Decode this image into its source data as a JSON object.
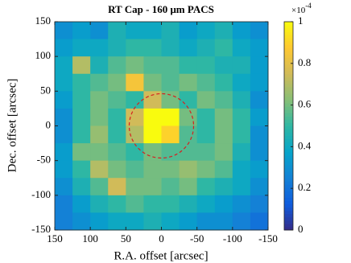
{
  "chart_data": {
    "type": "heatmap",
    "title": "RT Cap - 160 μm PACS",
    "x_label": "R.A. offset [arcsec]",
    "y_label": "Dec. offset [arcsec]",
    "xlim": [
      150,
      -150
    ],
    "xticks": [
      150,
      100,
      50,
      0,
      -50,
      -100,
      -150
    ],
    "ylim": [
      -150,
      150
    ],
    "yticks": [
      -150,
      -100,
      -50,
      0,
      50,
      100,
      150
    ],
    "clim": [
      0,
      1
    ],
    "cticks": [
      0,
      0.2,
      0.4,
      0.6,
      0.8,
      1
    ],
    "colorbar_scale": "×10",
    "colorbar_exponent": "-4",
    "colormap": [
      "#352a87",
      "#0f5cdd",
      "#1481d6",
      "#06a4ca",
      "#2eb7a4",
      "#87bf77",
      "#d1bb59",
      "#fec832",
      "#f9fb0e"
    ],
    "z": [
      [
        0.3,
        0.35,
        0.3,
        0.45,
        0.4,
        0.4,
        0.45,
        0.35,
        0.4,
        0.45,
        0.35,
        0.3
      ],
      [
        0.35,
        0.4,
        0.4,
        0.45,
        0.5,
        0.5,
        0.45,
        0.4,
        0.45,
        0.5,
        0.4,
        0.35
      ],
      [
        0.4,
        0.7,
        0.45,
        0.55,
        0.6,
        0.55,
        0.55,
        0.5,
        0.5,
        0.45,
        0.45,
        0.35
      ],
      [
        0.4,
        0.5,
        0.55,
        0.6,
        0.85,
        0.6,
        0.55,
        0.6,
        0.55,
        0.5,
        0.4,
        0.35
      ],
      [
        0.35,
        0.5,
        0.6,
        0.55,
        0.5,
        0.75,
        0.6,
        0.5,
        0.6,
        0.55,
        0.45,
        0.3
      ],
      [
        0.3,
        0.5,
        0.6,
        0.5,
        0.75,
        1,
        1,
        0.6,
        0.5,
        0.6,
        0.5,
        0.35
      ],
      [
        0.3,
        0.5,
        0.65,
        0.5,
        0.7,
        1,
        0.9,
        0.55,
        0.5,
        0.6,
        0.5,
        0.3
      ],
      [
        0.35,
        0.6,
        0.6,
        0.55,
        0.5,
        0.6,
        0.55,
        0.55,
        0.55,
        0.6,
        0.45,
        0.3
      ],
      [
        0.35,
        0.5,
        0.7,
        0.6,
        0.55,
        0.6,
        0.6,
        0.65,
        0.6,
        0.55,
        0.4,
        0.35
      ],
      [
        0.3,
        0.45,
        0.55,
        0.75,
        0.6,
        0.6,
        0.55,
        0.6,
        0.5,
        0.45,
        0.4,
        0.3
      ],
      [
        0.25,
        0.35,
        0.45,
        0.5,
        0.55,
        0.5,
        0.5,
        0.45,
        0.4,
        0.35,
        0.3,
        0.25
      ],
      [
        0.25,
        0.3,
        0.35,
        0.4,
        0.4,
        0.45,
        0.4,
        0.35,
        0.3,
        0.3,
        0.25,
        0.2
      ]
    ]
  }
}
